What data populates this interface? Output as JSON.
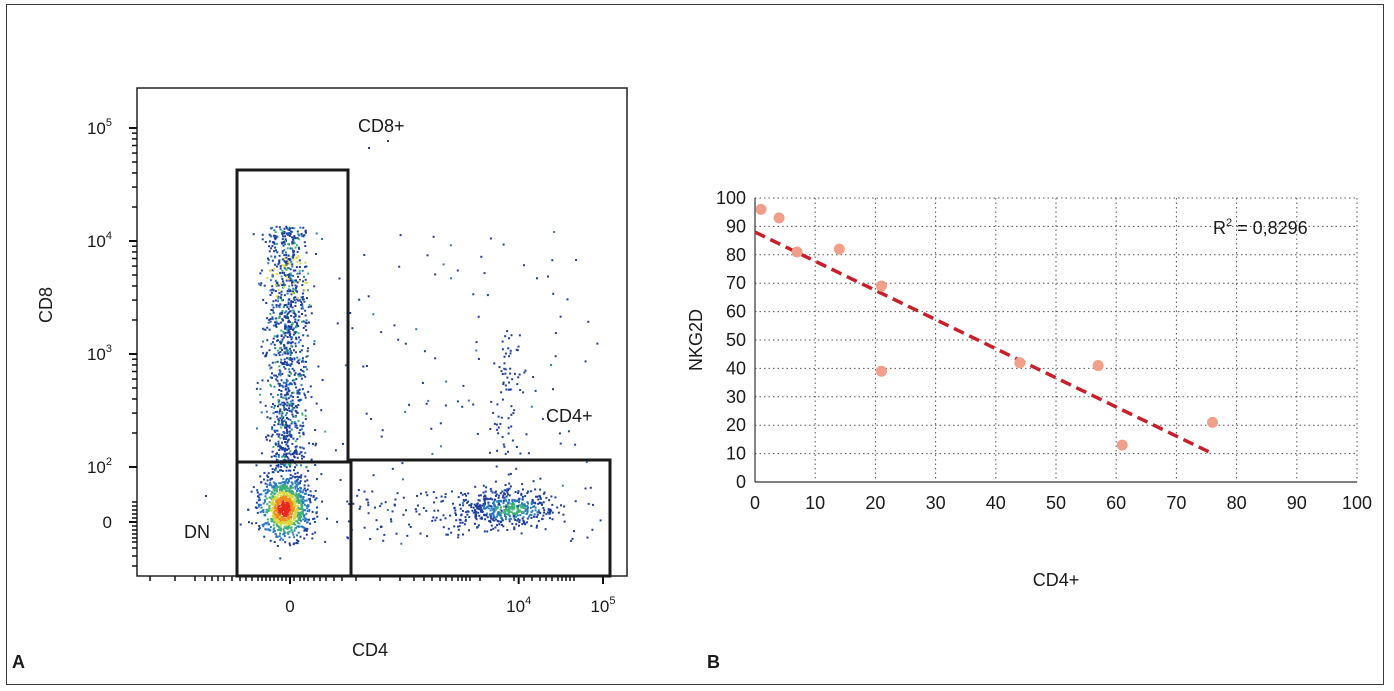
{
  "panels": [
    {
      "letter": "A"
    },
    {
      "letter": "B"
    }
  ],
  "chart_data": [
    {
      "type": "scatter",
      "panel": "A",
      "xlabel": "CD4",
      "ylabel": "CD8",
      "scale": "biexponential (log with linear region near 0)",
      "x_ticks": [
        {
          "value": 0,
          "label": "0",
          "sup": ""
        },
        {
          "value": 10000,
          "label": "10",
          "sup": "4"
        },
        {
          "value": 100000,
          "label": "10",
          "sup": "5"
        }
      ],
      "y_ticks": [
        {
          "value": 0,
          "label": "0",
          "sup": ""
        },
        {
          "value": 100,
          "label": "10",
          "sup": "2"
        },
        {
          "value": 1000,
          "label": "10",
          "sup": "3"
        },
        {
          "value": 10000,
          "label": "10",
          "sup": "4"
        },
        {
          "value": 100000,
          "label": "10",
          "sup": "5"
        }
      ],
      "gates": [
        {
          "name": "CD8+"
        },
        {
          "name": "CD4+"
        },
        {
          "name": "DN"
        }
      ],
      "color_scale": [
        "#1f3f9f",
        "#2a7abf",
        "#3fb07a",
        "#d8d83a",
        "#f08a1e",
        "#e8281c"
      ]
    },
    {
      "type": "scatter",
      "panel": "B",
      "xlabel": "CD4+",
      "ylabel": "NKG2D",
      "xlim": [
        0,
        100
      ],
      "ylim": [
        0,
        100
      ],
      "x_ticks": [
        0,
        10,
        20,
        30,
        40,
        50,
        60,
        70,
        80,
        90,
        100
      ],
      "y_ticks": [
        0,
        10,
        20,
        30,
        40,
        50,
        60,
        70,
        80,
        90,
        100
      ],
      "grid": true,
      "grid_style": "dotted",
      "point_color": "#f0a08a",
      "points": [
        {
          "x": 1,
          "y": 96
        },
        {
          "x": 4,
          "y": 93
        },
        {
          "x": 7,
          "y": 81
        },
        {
          "x": 14,
          "y": 82
        },
        {
          "x": 21,
          "y": 69
        },
        {
          "x": 21,
          "y": 39
        },
        {
          "x": 44,
          "y": 42
        },
        {
          "x": 57,
          "y": 41
        },
        {
          "x": 61,
          "y": 13
        },
        {
          "x": 76,
          "y": 21
        }
      ],
      "trendline": {
        "x1": 0,
        "y1": 88,
        "x2": 76,
        "y2": 10,
        "color": "#c8202a",
        "style": "dashed"
      },
      "annotation": {
        "text": "R",
        "sup": "2",
        "rest": " = 0,8296"
      }
    }
  ]
}
